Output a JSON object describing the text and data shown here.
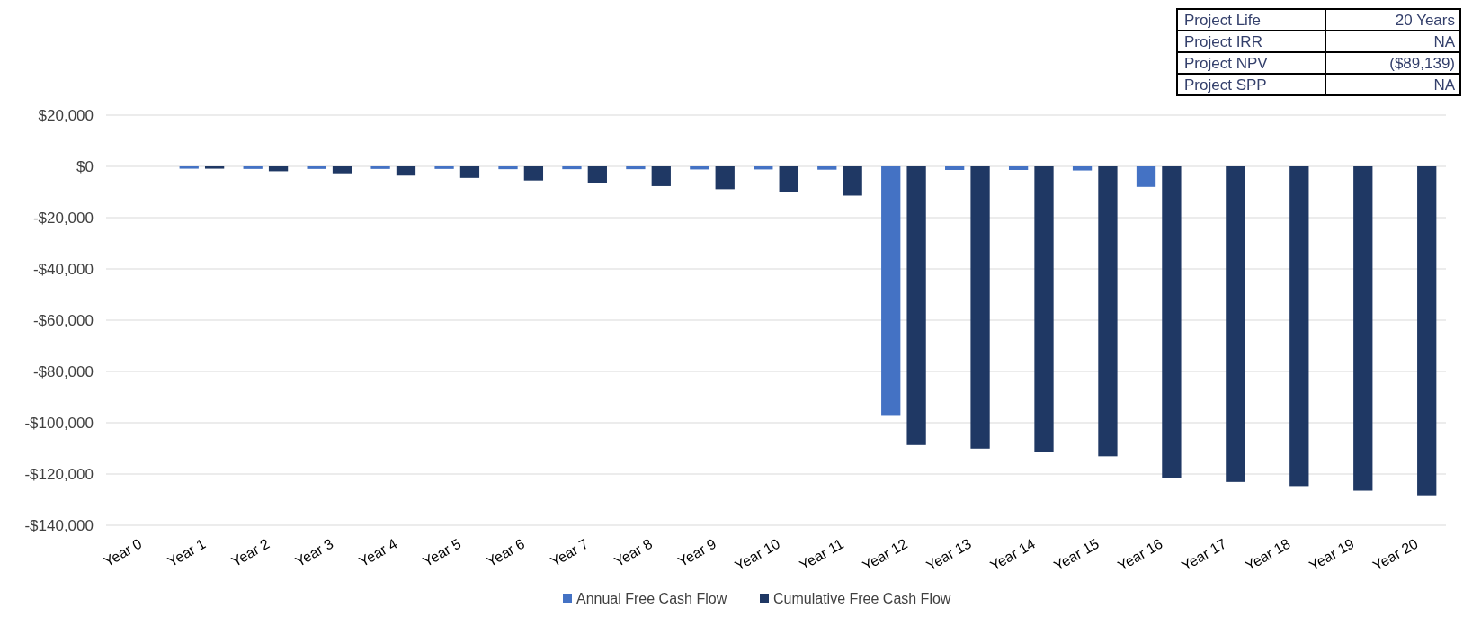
{
  "chart_data": {
    "type": "bar",
    "categories": [
      "Year 0",
      "Year 1",
      "Year 2",
      "Year 3",
      "Year 4",
      "Year 5",
      "Year 6",
      "Year 7",
      "Year 8",
      "Year 9",
      "Year 10",
      "Year 11",
      "Year 12",
      "Year 13",
      "Year 14",
      "Year 15",
      "Year 16",
      "Year 17",
      "Year 18",
      "Year 19",
      "Year 20"
    ],
    "series": [
      {
        "name": "Annual Free Cash Flow",
        "color": "#4472c4",
        "values": [
          0,
          -900,
          -1000,
          -1000,
          -1000,
          -1000,
          -1100,
          -1100,
          -1100,
          -1200,
          -1200,
          -1300,
          -97000,
          -1400,
          -1400,
          -1600,
          -8000,
          null,
          null,
          null,
          null
        ]
      },
      {
        "name": "Cumulative Free Cash Flow",
        "color": "#1f3864",
        "values": [
          0,
          -900,
          -1900,
          -2700,
          -3600,
          -4500,
          -5500,
          -6600,
          -7700,
          -8900,
          -10100,
          -11400,
          -108700,
          -110100,
          -111500,
          -113100,
          -121400,
          -123100,
          -124700,
          -126500,
          -128300
        ]
      }
    ],
    "ylim": [
      -140000,
      20000
    ],
    "yticks": [
      {
        "value": -140000,
        "label": "-$140,000"
      },
      {
        "value": -120000,
        "label": "-$120,000"
      },
      {
        "value": -100000,
        "label": "-$100,000"
      },
      {
        "value": -80000,
        "label": "-$80,000"
      },
      {
        "value": -60000,
        "label": "-$60,000"
      },
      {
        "value": -40000,
        "label": "-$40,000"
      },
      {
        "value": -20000,
        "label": "-$20,000"
      },
      {
        "value": 0,
        "label": "$0"
      },
      {
        "value": 20000,
        "label": "$20,000"
      }
    ],
    "grid": true,
    "legend": "bottom",
    "annotations": [
      "Project Life",
      "20 Years",
      "Project IRR",
      "NA",
      "Project NPV",
      "($89,139)",
      "Project SPP",
      "NA"
    ]
  }
}
